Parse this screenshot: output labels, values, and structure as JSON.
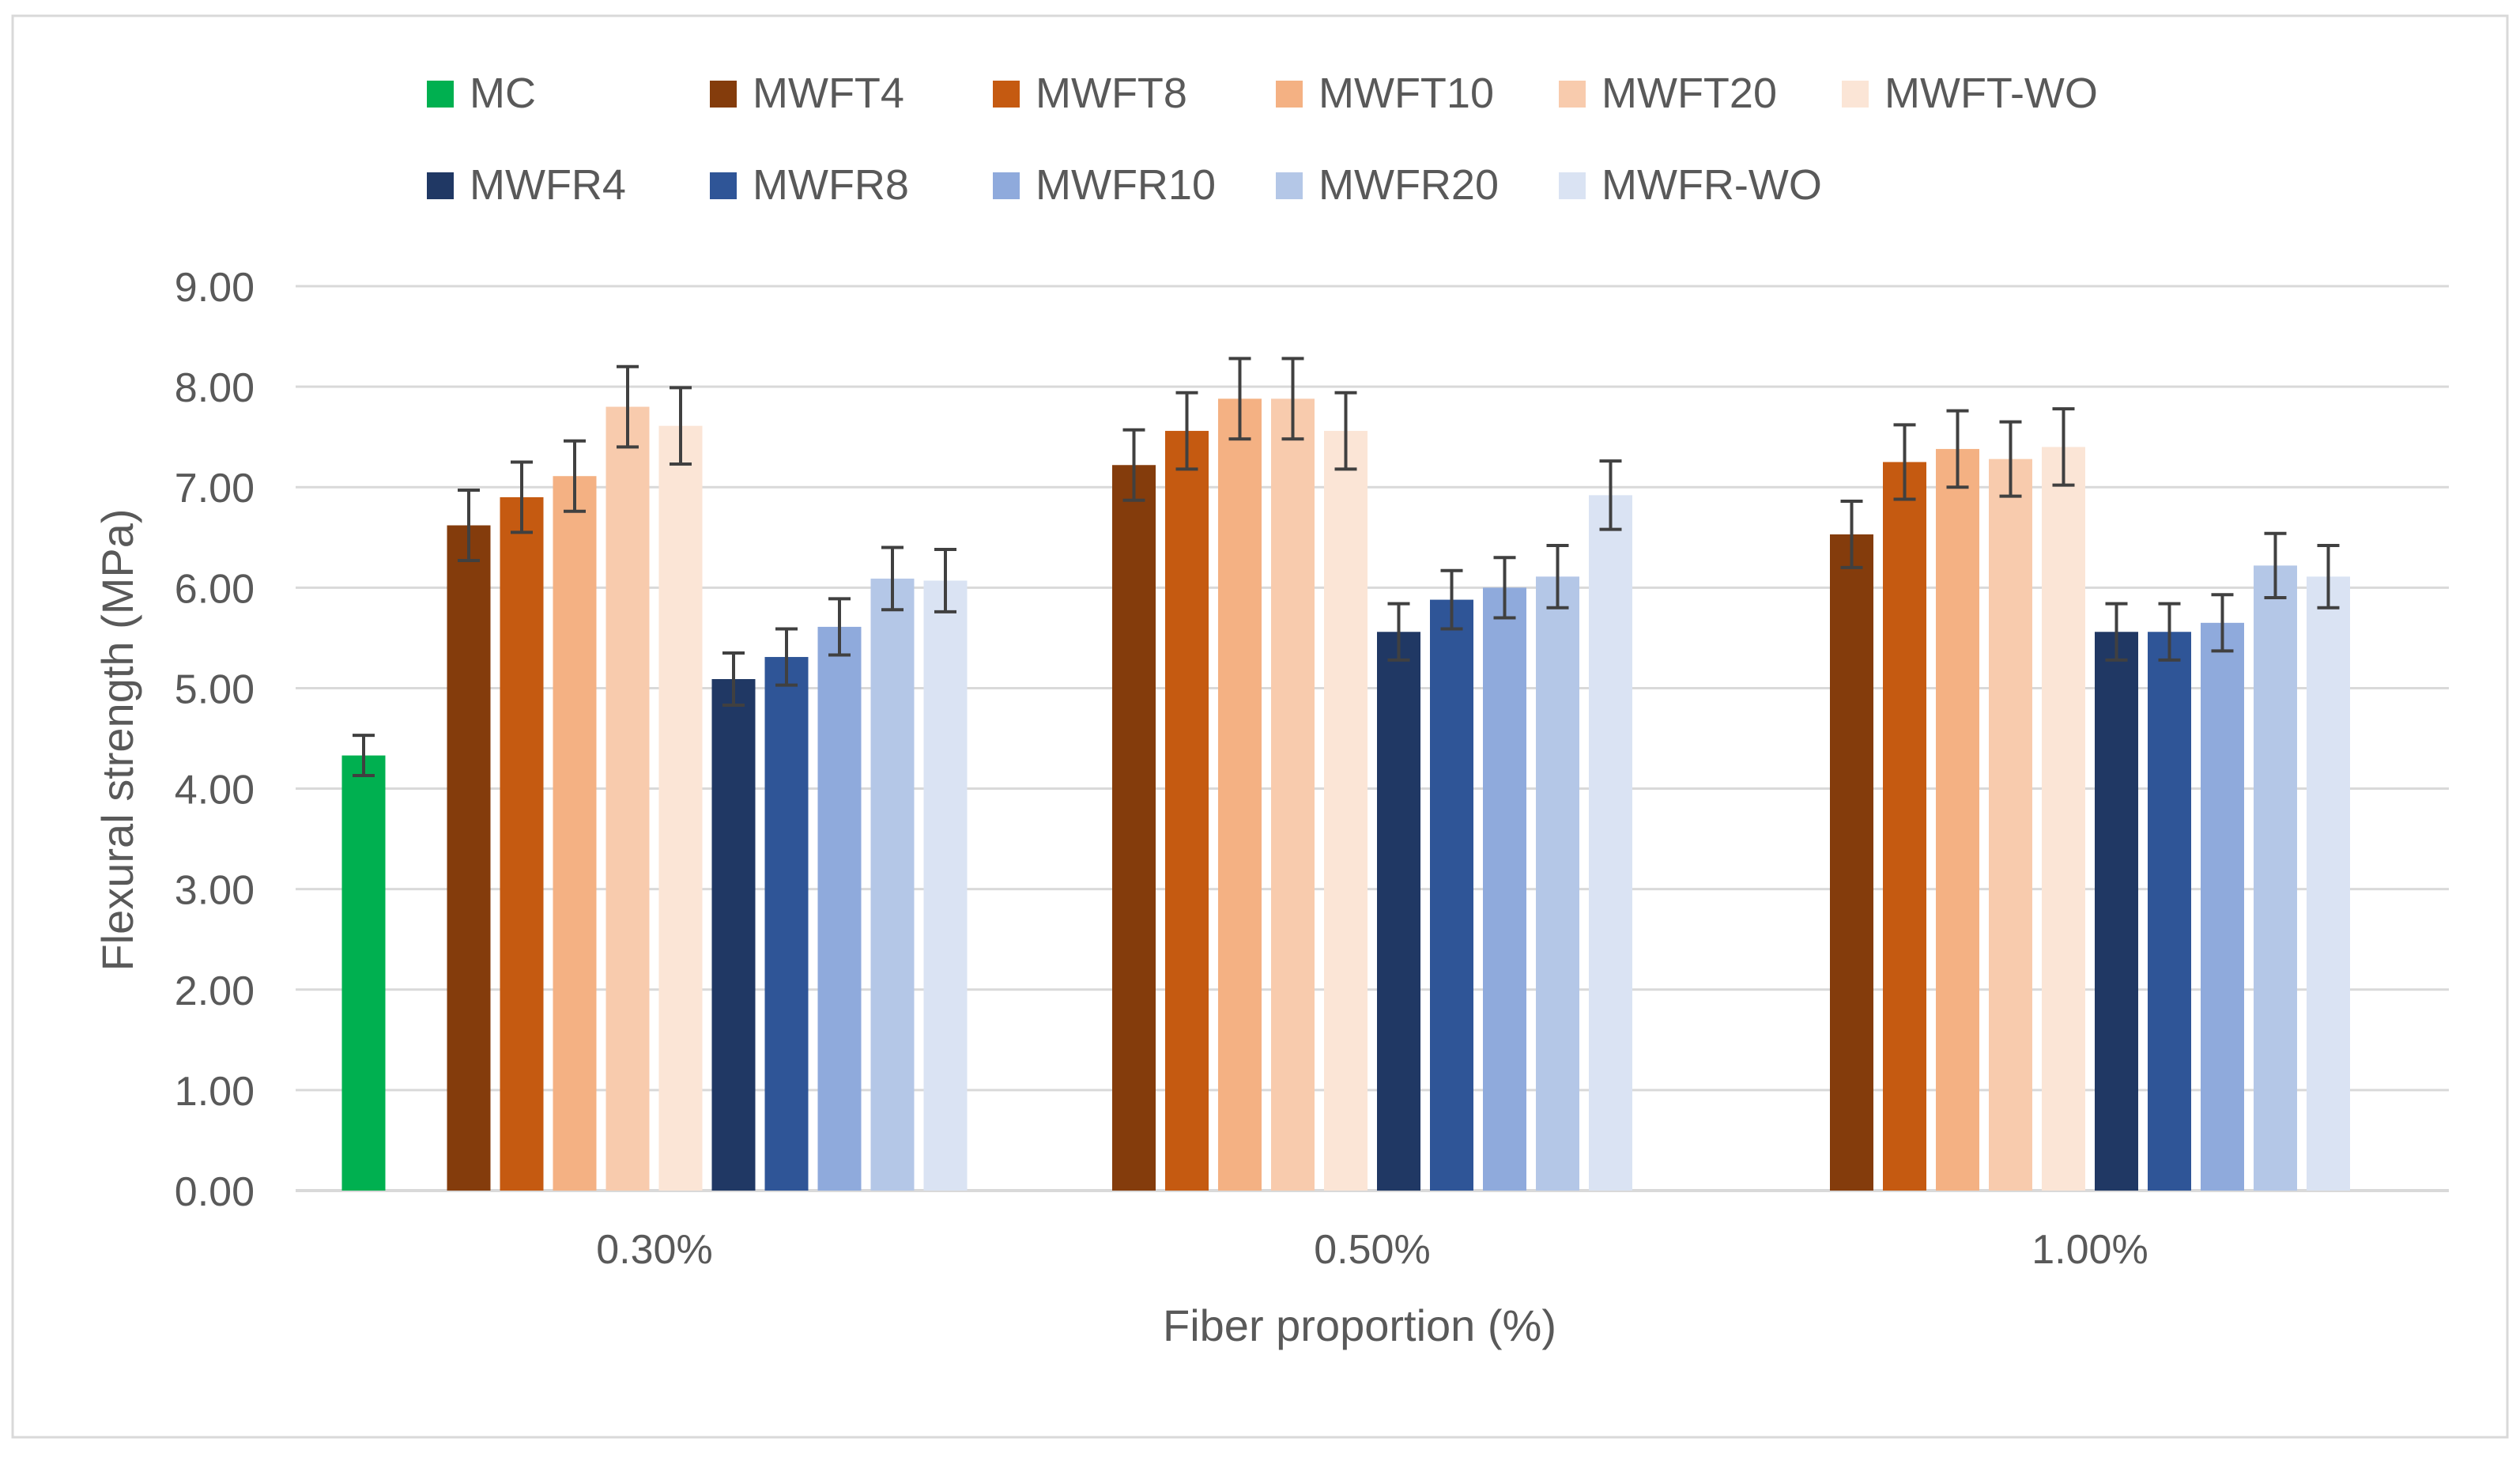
{
  "chart_data": {
    "type": "bar",
    "title": "",
    "xlabel": "Fiber proportion (%)",
    "ylabel": "Flexural strength (MPa)",
    "ylim": [
      0,
      9
    ],
    "ytick_step": 1,
    "ytick_labels": [
      "0.00",
      "1.00",
      "2.00",
      "3.00",
      "4.00",
      "5.00",
      "6.00",
      "7.00",
      "8.00",
      "9.00"
    ],
    "categories": [
      "0.30%",
      "0.50%",
      "1.00%"
    ],
    "grid": true,
    "legend_position": "top",
    "series": [
      {
        "name": "MC",
        "color": "#00B050",
        "values": [
          4.33,
          null,
          null
        ],
        "errors": [
          0.2,
          null,
          null
        ]
      },
      {
        "name": "MWFT4",
        "color": "#843C0C",
        "values": [
          6.62,
          7.22,
          6.53
        ],
        "errors": [
          0.35,
          0.35,
          0.33
        ]
      },
      {
        "name": "MWFT8",
        "color": "#C55A11",
        "values": [
          6.9,
          7.56,
          7.25
        ],
        "errors": [
          0.35,
          0.38,
          0.37
        ]
      },
      {
        "name": "MWFT10",
        "color": "#F4B183",
        "values": [
          7.11,
          7.88,
          7.38
        ],
        "errors": [
          0.35,
          0.4,
          0.38
        ]
      },
      {
        "name": "MWFT20",
        "color": "#F8CBAD",
        "values": [
          7.8,
          7.88,
          7.28
        ],
        "errors": [
          0.4,
          0.4,
          0.37
        ]
      },
      {
        "name": "MWFT-WO",
        "color": "#FBE5D6",
        "values": [
          7.61,
          7.56,
          7.4
        ],
        "errors": [
          0.38,
          0.38,
          0.38
        ]
      },
      {
        "name": "MWFR4",
        "color": "#203864",
        "values": [
          5.09,
          5.56,
          5.56
        ],
        "errors": [
          0.26,
          0.28,
          0.28
        ]
      },
      {
        "name": "MWFR8",
        "color": "#2F5597",
        "values": [
          5.31,
          5.88,
          5.56
        ],
        "errors": [
          0.28,
          0.29,
          0.28
        ]
      },
      {
        "name": "MWFR10",
        "color": "#8FAADC",
        "values": [
          5.61,
          6.0,
          5.65
        ],
        "errors": [
          0.28,
          0.3,
          0.28
        ]
      },
      {
        "name": "MWFR20",
        "color": "#B4C7E7",
        "values": [
          6.09,
          6.11,
          6.22
        ],
        "errors": [
          0.31,
          0.31,
          0.32
        ]
      },
      {
        "name": "MWFR-WO",
        "color": "#DAE3F3",
        "values": [
          6.07,
          6.92,
          6.11
        ],
        "errors": [
          0.31,
          0.34,
          0.31
        ]
      }
    ]
  }
}
